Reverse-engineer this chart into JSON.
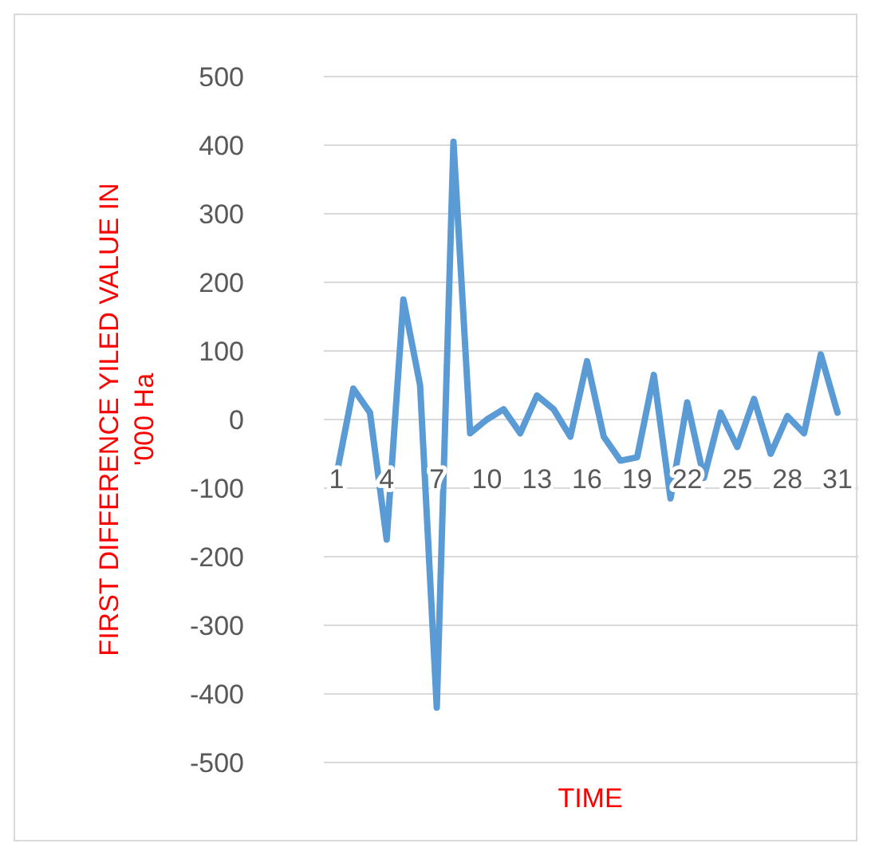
{
  "chart_data": {
    "type": "line",
    "xlabel": "TIME",
    "ylabel": "FIRST DIFFERENCE YILED VALUE IN '000 Ha",
    "categories": [
      "1",
      null,
      null,
      "4",
      null,
      null,
      "7",
      null,
      null,
      "10",
      null,
      null,
      "13",
      null,
      null,
      "16",
      null,
      null,
      "19",
      null,
      null,
      "22",
      null,
      null,
      "25",
      null,
      null,
      "28",
      null,
      null,
      "31"
    ],
    "series": [
      {
        "color": "#5b9bd5",
        "values": [
          -80,
          45,
          10,
          -175,
          175,
          50,
          -420,
          405,
          -20,
          0,
          15,
          -20,
          35,
          15,
          -25,
          85,
          -25,
          -60,
          -55,
          65,
          -115,
          25,
          -85,
          10,
          -40,
          30,
          -50,
          5,
          -20,
          95,
          10
        ]
      }
    ],
    "ylim": [
      -500,
      500
    ],
    "yticks": [
      -500,
      -400,
      -300,
      -200,
      -100,
      0,
      100,
      200,
      300,
      400,
      500
    ],
    "grid": "y",
    "marker": "none",
    "line_style": "solid"
  }
}
